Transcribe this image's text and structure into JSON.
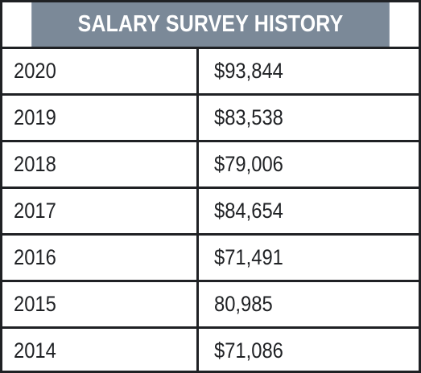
{
  "table": {
    "title": "SALARY SURVEY HISTORY",
    "rows": [
      {
        "year": "2020",
        "salary": "$93,844"
      },
      {
        "year": "2019",
        "salary": "$83,538"
      },
      {
        "year": "2018",
        "salary": "$79,006"
      },
      {
        "year": "2017",
        "salary": "$84,654"
      },
      {
        "year": "2016",
        "salary": "$71,491"
      },
      {
        "year": "2015",
        "salary": "80,985"
      },
      {
        "year": "2014",
        "salary": "$71,086"
      }
    ]
  },
  "colors": {
    "header_background": "#7b8998",
    "header_text": "#ffffff",
    "border": "#1f2124",
    "cell_text": "#1f2124"
  }
}
